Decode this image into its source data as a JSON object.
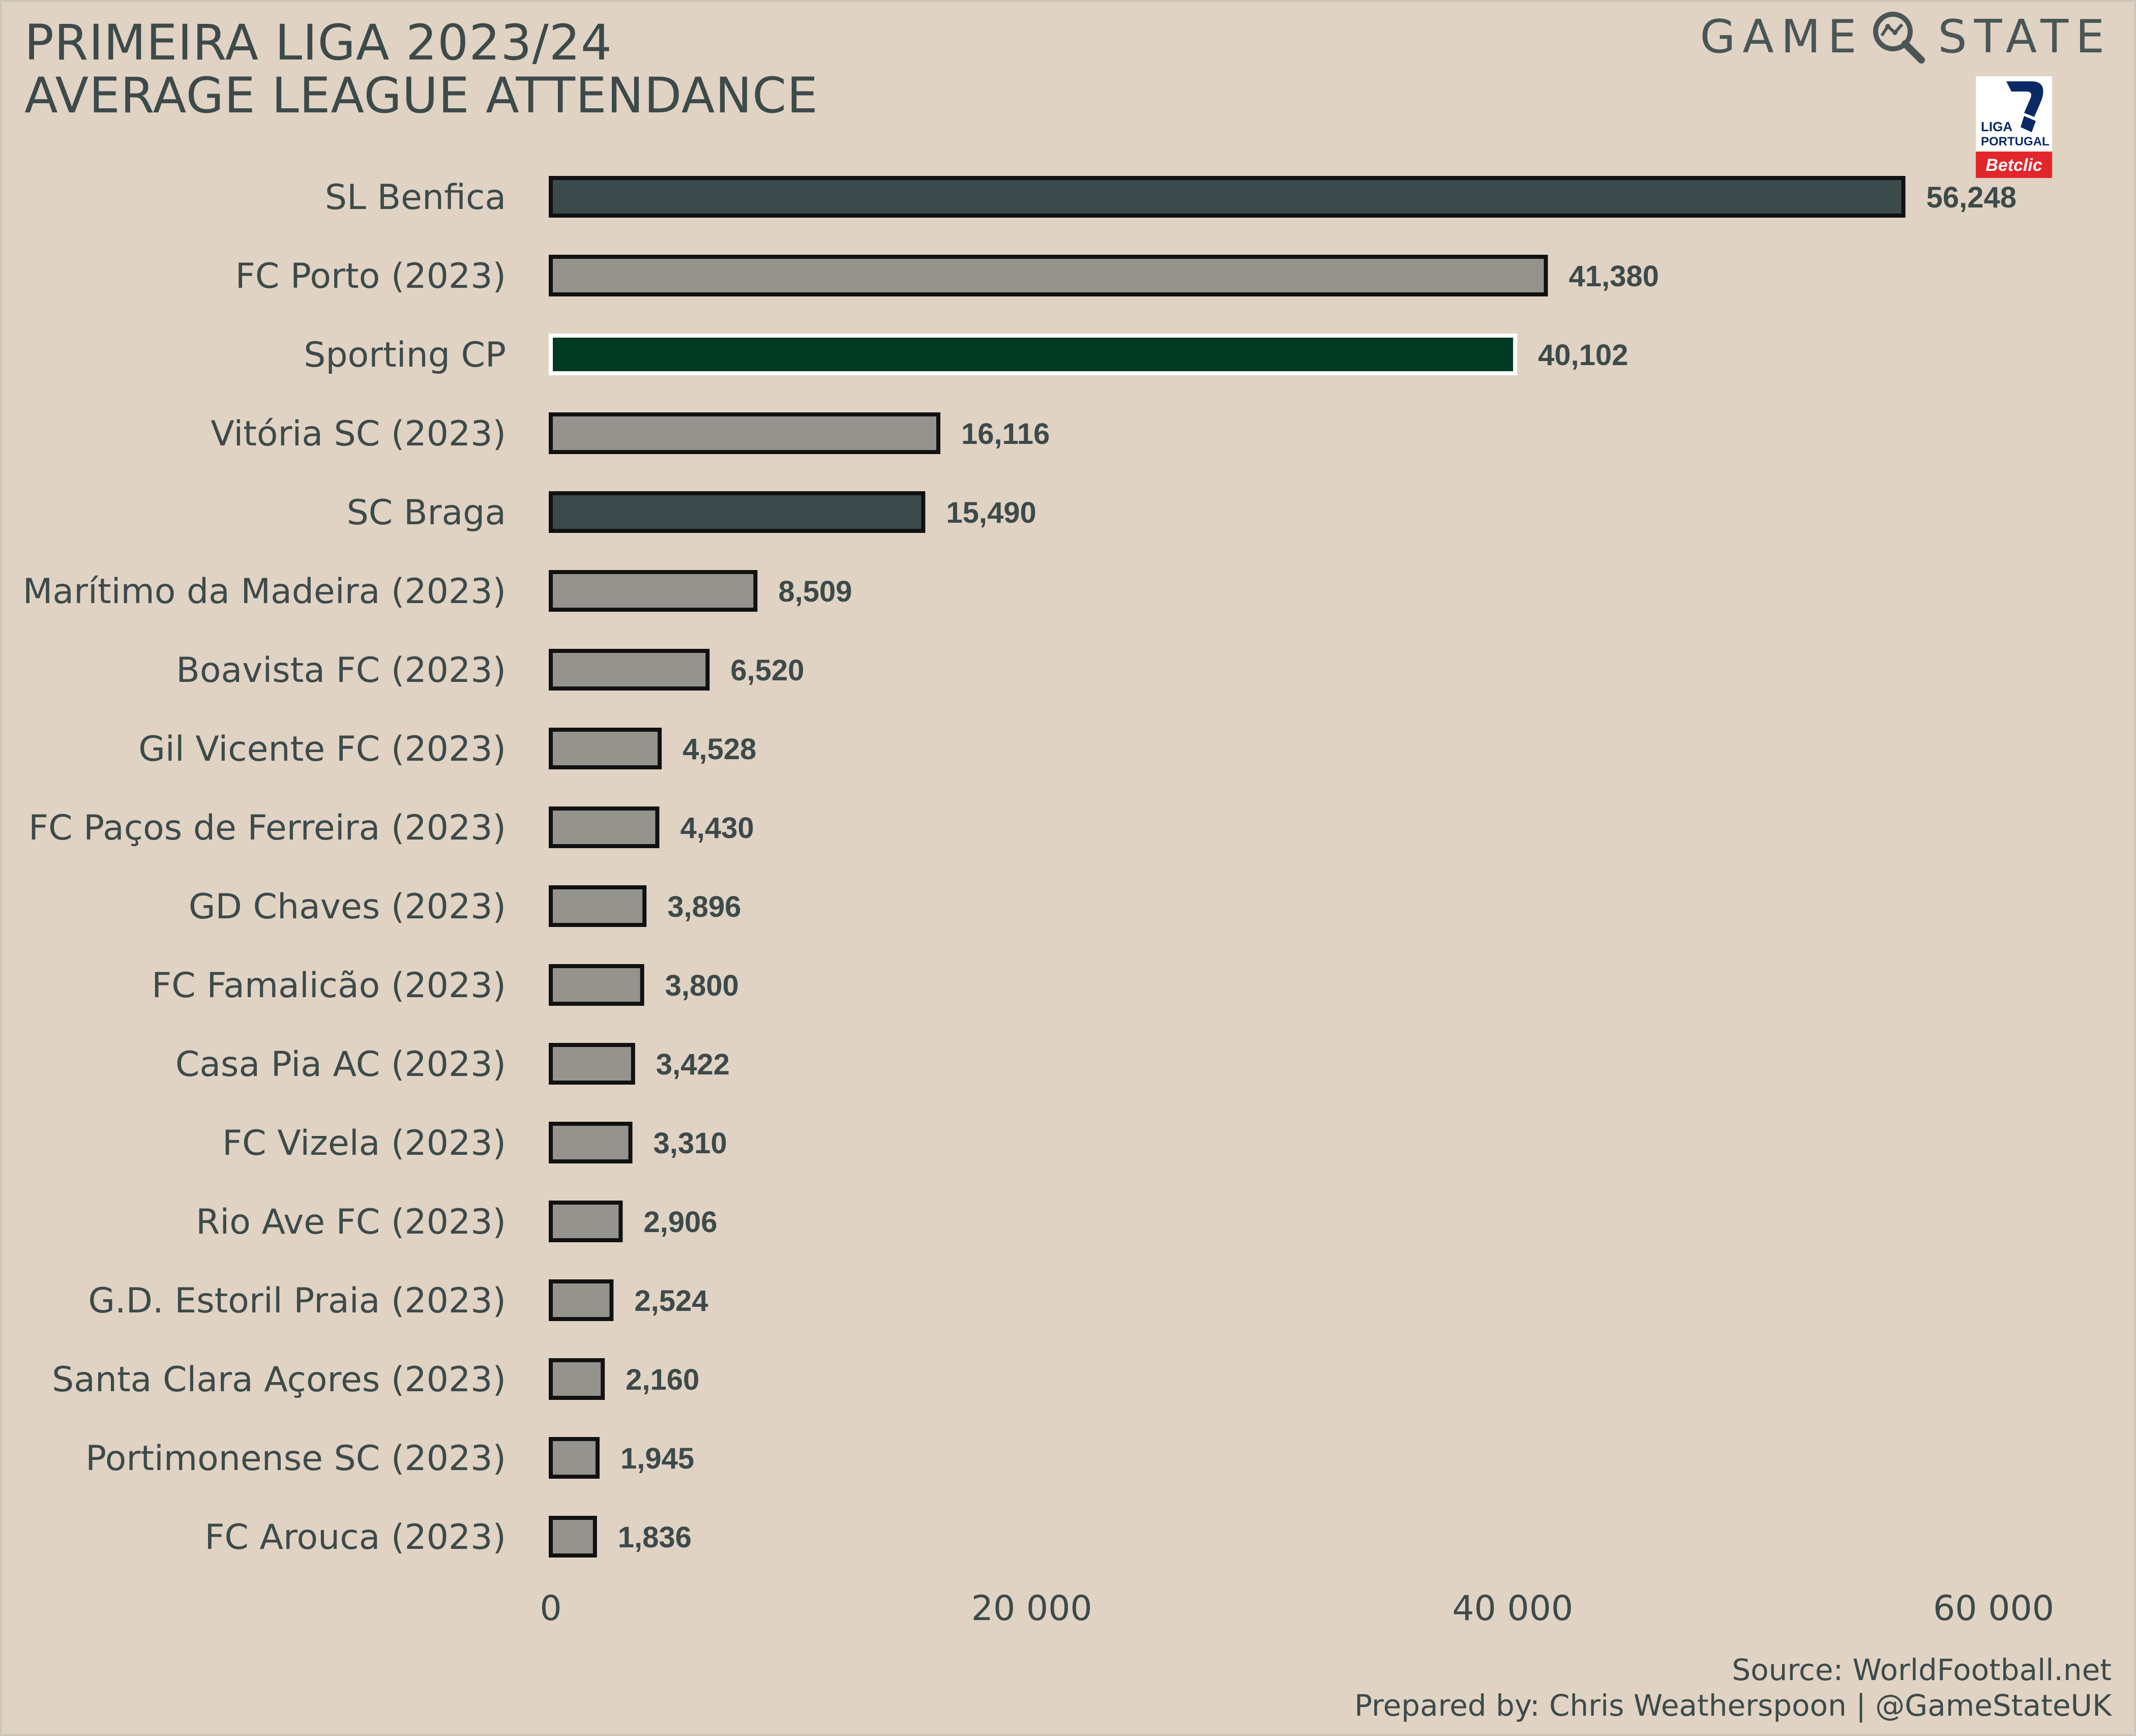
{
  "title": "PRIMEIRA LIGA 2023/24",
  "subtitle": "AVERAGE LEAGUE ATTENDANCE",
  "brand": {
    "left": "GAME",
    "right": "STATE",
    "icon": "magnifier-icon"
  },
  "league_logo": {
    "icon": "liga-portugal-logo",
    "text_top": "LIGA",
    "text_mid": "PORTUGAL",
    "text_sponsor": "Betclic"
  },
  "footer": {
    "source": "Source: WorldFootball.net",
    "credit": "Prepared by: Chris Weatherspoon | @GameStateUK"
  },
  "colors": {
    "background": "#e0d3c4",
    "text": "#3d4a4a",
    "bar_default": "#95938d",
    "bar_dark": "#3b4a4b",
    "bar_sporting": "#003a24"
  },
  "chart_data": {
    "type": "bar",
    "orientation": "horizontal",
    "xlim": [
      0,
      60000
    ],
    "ticks": [
      0,
      20000,
      40000,
      60000
    ],
    "tick_labels": [
      "0",
      "20 000",
      "40 000",
      "60 000"
    ],
    "grid": false,
    "legend": "none",
    "categories": [
      "SL Benfica",
      "FC Porto (2023)",
      "Sporting CP",
      "Vitória SC (2023)",
      "SC Braga",
      "Marítimo da Madeira (2023)",
      "Boavista FC (2023)",
      "Gil Vicente FC (2023)",
      "FC Paços de Ferreira (2023)",
      "GD Chaves (2023)",
      "FC Famalicão (2023)",
      "Casa Pia AC (2023)",
      "FC Vizela (2023)",
      "Rio Ave FC (2023)",
      "G.D. Estoril Praia (2023)",
      "Santa Clara Açores (2023)",
      "Portimonense SC (2023)",
      "FC Arouca (2023)"
    ],
    "values": [
      56248,
      41380,
      40102,
      16116,
      15490,
      8509,
      6520,
      4528,
      4430,
      3896,
      3800,
      3422,
      3310,
      2906,
      2524,
      2160,
      1945,
      1836
    ],
    "value_labels": [
      "56,248",
      "41,380",
      "40,102",
      "16,116",
      "15,490",
      "8,509",
      "6,520",
      "4,528",
      "4,430",
      "3,896",
      "3,800",
      "3,422",
      "3,310",
      "2,906",
      "2,524",
      "2,160",
      "1,945",
      "1,836"
    ],
    "bar_colors": [
      "#3b4a4b",
      "#95938d",
      "#003a24",
      "#95938d",
      "#3b4a4b",
      "#95938d",
      "#95938d",
      "#95938d",
      "#95938d",
      "#95938d",
      "#95938d",
      "#95938d",
      "#95938d",
      "#95938d",
      "#95938d",
      "#95938d",
      "#95938d",
      "#95938d"
    ],
    "bar_outlines": [
      "#111111",
      "#111111",
      "#ffffff",
      "#111111",
      "#111111",
      "#111111",
      "#111111",
      "#111111",
      "#111111",
      "#111111",
      "#111111",
      "#111111",
      "#111111",
      "#111111",
      "#111111",
      "#111111",
      "#111111",
      "#111111"
    ]
  }
}
